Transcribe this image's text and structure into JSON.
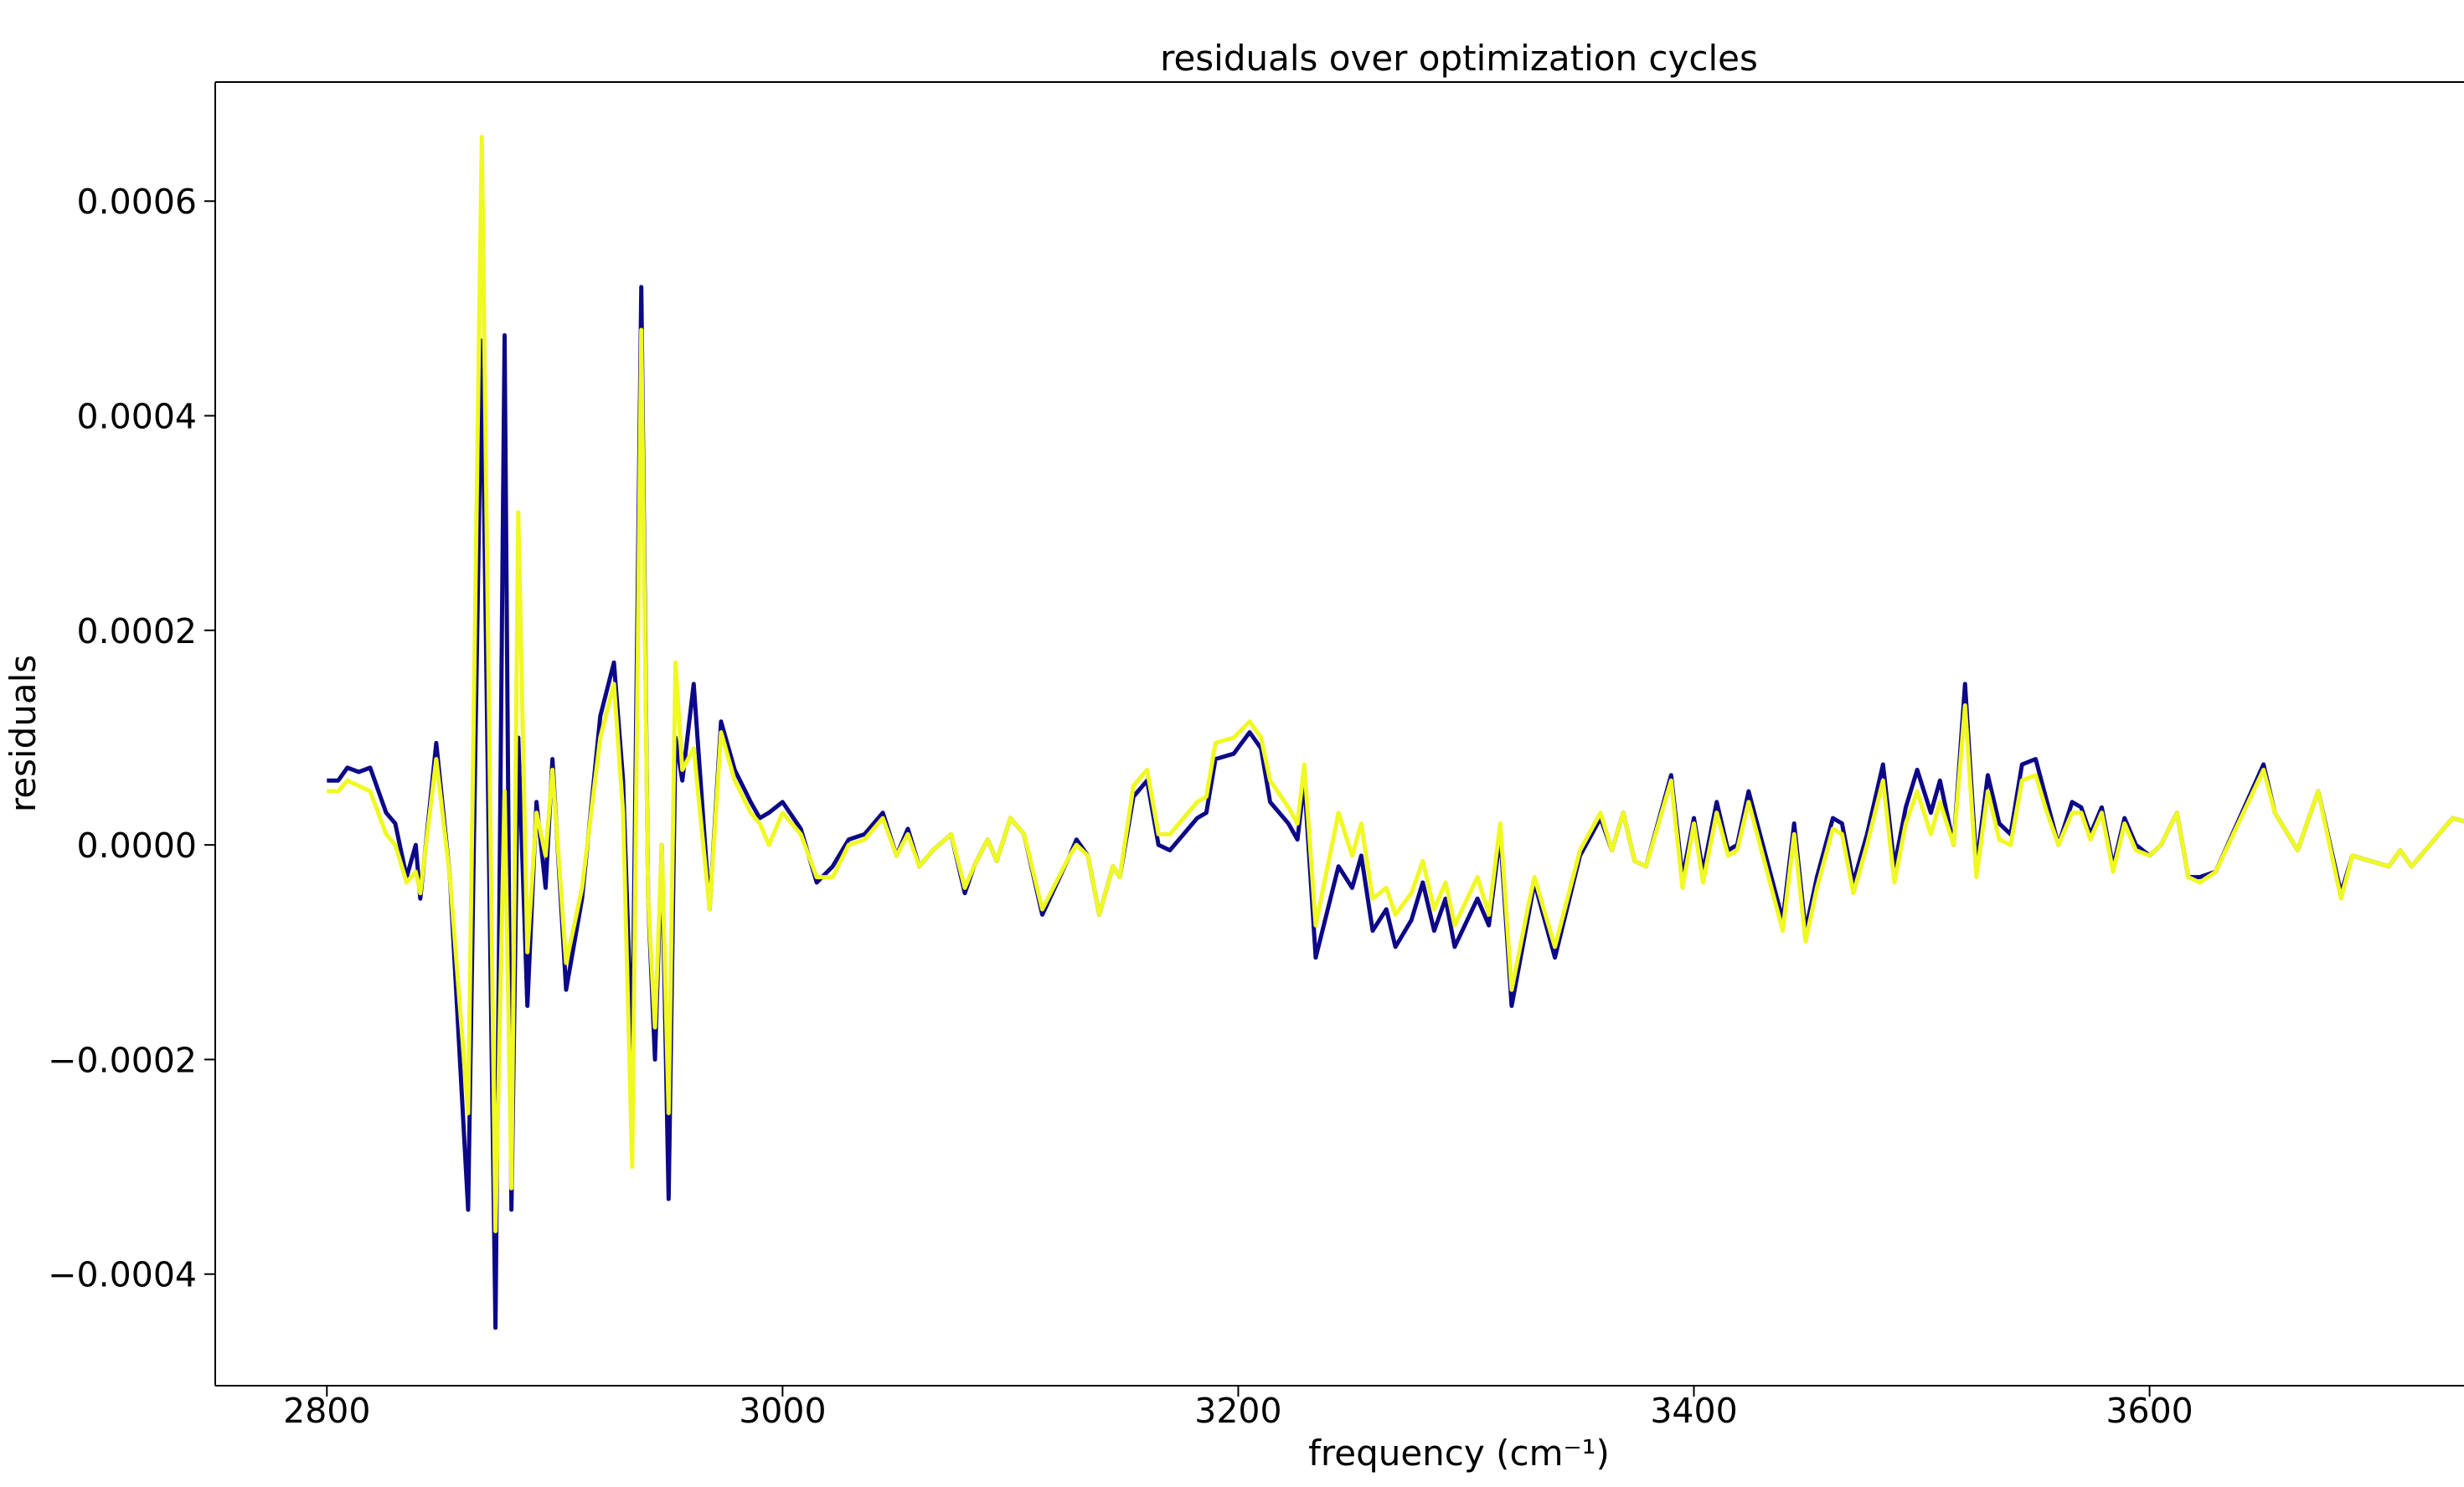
{
  "chart_data": {
    "type": "line",
    "title": "residuals over optimization cycles",
    "xlabel": "frequency (cm⁻¹)",
    "ylabel": "residuals",
    "x": [
      2800,
      2805,
      2809,
      2814,
      2819,
      2826,
      2830,
      2835,
      2839,
      2841,
      2848,
      2854,
      2862,
      2868,
      2874,
      2878,
      2881,
      2884,
      2888,
      2892,
      2896,
      2899,
      2905,
      2912,
      2920,
      2926,
      2930,
      2934,
      2938,
      2941,
      2944,
      2947,
      2950,
      2953,
      2956,
      2961,
      2968,
      2973,
      2979,
      2986,
      2990,
      2994,
      3000,
      3008,
      3015,
      3022,
      3029,
      3036,
      3044,
      3050,
      3055,
      3060,
      3066,
      3074,
      3080,
      3084,
      3090,
      3094,
      3100,
      3106,
      3114,
      3126,
      3129,
      3134,
      3139,
      3145,
      3148,
      3154,
      3160,
      3165,
      3170,
      3182,
      3186,
      3190,
      3198,
      3205,
      3210,
      3214,
      3222,
      3226,
      3229,
      3234,
      3244,
      3250,
      3254,
      3259,
      3265,
      3269,
      3276,
      3281,
      3286,
      3291,
      3295,
      3305,
      3310,
      3315,
      3320,
      3327,
      3330,
      3339,
      3350,
      3359,
      3364,
      3369,
      3374,
      3379,
      3390,
      3395,
      3400,
      3404,
      3410,
      3415,
      3419,
      3424,
      3429,
      3439,
      3444,
      3449,
      3454,
      3461,
      3465,
      3470,
      3476,
      3483,
      3488,
      3493,
      3498,
      3504,
      3508,
      3514,
      3519,
      3524,
      3529,
      3534,
      3539,
      3544,
      3550,
      3555,
      3560,
      3566,
      3570,
      3574,
      3579,
      3584,
      3589,
      3594,
      3600,
      3605,
      3612,
      3617,
      3622,
      3629,
      3650,
      3655,
      3665,
      3674,
      3684,
      3689,
      3705,
      3710,
      3715,
      3733,
      3738
    ],
    "series": [
      {
        "color": "#0d0887",
        "values": [
          6e-05,
          6e-05,
          7.2e-05,
          6.8e-05,
          7.2e-05,
          3e-05,
          2e-05,
          -3e-05,
          0,
          -5e-05,
          9.5e-05,
          -3e-05,
          -0.00034,
          0.00047,
          -0.00045,
          0.000475,
          -0.00034,
          0.0001,
          -0.00015,
          4e-05,
          -4e-05,
          8e-05,
          -0.000135,
          -5e-05,
          0.00012,
          0.00017,
          6e-05,
          -0.0002,
          0.00052,
          -5e-05,
          -0.0002,
          0,
          -0.00033,
          0.0001,
          6e-05,
          0.00015,
          -6e-05,
          0.000115,
          7e-05,
          4e-05,
          2.5e-05,
          3e-05,
          4e-05,
          1.5e-05,
          -3.5e-05,
          -2e-05,
          5e-06,
          1e-05,
          3e-05,
          -1e-05,
          1.5e-05,
          -2e-05,
          -5e-06,
          1e-05,
          -4.5e-05,
          -2e-05,
          5e-06,
          -1.5e-05,
          2.5e-05,
          1e-05,
          -6.5e-05,
          -1e-05,
          5e-06,
          -1e-05,
          -6.5e-05,
          -2e-05,
          -3e-05,
          4.5e-05,
          6e-05,
          0,
          -5e-06,
          2.5e-05,
          3e-05,
          8e-05,
          8.5e-05,
          0.000105,
          9e-05,
          4e-05,
          2e-05,
          5e-06,
          6e-05,
          -0.000105,
          -2e-05,
          -4e-05,
          -1e-05,
          -8e-05,
          -6e-05,
          -9.5e-05,
          -7e-05,
          -3.5e-05,
          -8e-05,
          -5e-05,
          -9.5e-05,
          -5e-05,
          -7.5e-05,
          1e-05,
          -0.00015,
          -7e-05,
          -3.5e-05,
          -0.000105,
          -1e-05,
          2.5e-05,
          -5e-06,
          3e-05,
          -1.5e-05,
          -2e-05,
          6.5e-05,
          -3e-05,
          2.5e-05,
          -2.5e-05,
          4e-05,
          -5e-06,
          0,
          5e-05,
          1e-05,
          -7e-05,
          2e-05,
          -8e-05,
          -3e-05,
          2.5e-05,
          2e-05,
          -3.5e-05,
          1e-05,
          7.5e-05,
          -2e-05,
          3.5e-05,
          7e-05,
          3e-05,
          6e-05,
          0,
          0.00015,
          -2e-05,
          6.5e-05,
          2e-05,
          1e-05,
          7.5e-05,
          8e-05,
          4e-05,
          0,
          4e-05,
          3.5e-05,
          1e-05,
          3.5e-05,
          -2e-05,
          2.5e-05,
          0,
          -1e-05,
          0,
          3e-05,
          -3e-05,
          -3e-05,
          -2.5e-05,
          7.5e-05,
          3e-05,
          -5e-06,
          5e-05,
          -4.5e-05,
          -1e-05,
          -2e-05,
          -5e-06,
          -2e-05,
          2.5e-05,
          2.2e-05
        ]
      },
      {
        "color": "#f0f921",
        "values": [
          5e-05,
          5e-05,
          6e-05,
          5.5e-05,
          5e-05,
          1e-05,
          0,
          -3.5e-05,
          -2.5e-05,
          -4.5e-05,
          8e-05,
          -3e-05,
          -0.00025,
          0.00066,
          -0.00036,
          5e-05,
          -0.00032,
          0.00031,
          -0.0001,
          3e-05,
          -1e-05,
          7e-05,
          -0.00011,
          -4e-05,
          0.0001,
          0.00015,
          3e-05,
          -0.0003,
          0.00048,
          -5e-05,
          -0.00017,
          0,
          -0.00025,
          0.00017,
          7e-05,
          9e-05,
          -6e-05,
          0.000105,
          6e-05,
          3e-05,
          2e-05,
          0,
          3e-05,
          1e-05,
          -3e-05,
          -3e-05,
          0,
          5e-06,
          2.5e-05,
          -1e-05,
          1e-05,
          -2e-05,
          -5e-06,
          1e-05,
          -4e-05,
          -2e-05,
          5e-06,
          -1.5e-05,
          2.5e-05,
          1e-05,
          -6e-05,
          -1e-05,
          0,
          -1e-05,
          -6.5e-05,
          -2e-05,
          -3e-05,
          5.5e-05,
          7e-05,
          1e-05,
          1e-05,
          4e-05,
          4.5e-05,
          9.5e-05,
          0.0001,
          0.000115,
          0.0001,
          6e-05,
          3.5e-05,
          2e-05,
          7.5e-05,
          -7.5e-05,
          3e-05,
          -1e-05,
          2e-05,
          -5e-05,
          -4e-05,
          -6.5e-05,
          -4.5e-05,
          -1.5e-05,
          -6e-05,
          -3.5e-05,
          -7.5e-05,
          -3e-05,
          -6.5e-05,
          2e-05,
          -0.000135,
          -6e-05,
          -3e-05,
          -9.5e-05,
          -5e-06,
          3e-05,
          -5e-06,
          3e-05,
          -1.5e-05,
          -2e-05,
          6e-05,
          -4e-05,
          2e-05,
          -3.5e-05,
          3e-05,
          -1e-05,
          -5e-06,
          4e-05,
          0,
          -8e-05,
          1e-05,
          -9e-05,
          -4e-05,
          1.5e-05,
          1e-05,
          -4.5e-05,
          0,
          6e-05,
          -3.5e-05,
          2e-05,
          5e-05,
          1e-05,
          4e-05,
          0,
          0.00013,
          -3e-05,
          5e-05,
          5e-06,
          0,
          6e-05,
          6.5e-05,
          3e-05,
          0,
          3e-05,
          3e-05,
          5e-06,
          3e-05,
          -2.5e-05,
          2e-05,
          -5e-06,
          -1e-05,
          0,
          3e-05,
          -3e-05,
          -3.5e-05,
          -2.5e-05,
          7e-05,
          3e-05,
          -5e-06,
          5e-05,
          -5e-05,
          -1e-05,
          -2e-05,
          -5e-06,
          -2e-05,
          2.5e-05,
          2.2e-05
        ]
      }
    ],
    "xlim": [
      2751,
      3738
    ],
    "ylim": [
      -0.000504,
      0.000711
    ],
    "xticks": [
      2800,
      3000,
      3200,
      3400,
      3600
    ],
    "yticks": [
      {
        "value": -0.0004,
        "label": "−0.0004"
      },
      {
        "value": -0.0002,
        "label": "−0.0002"
      },
      {
        "value": 0,
        "label": "0.0000"
      },
      0.0002,
      0.0004,
      0.0006
    ]
  }
}
